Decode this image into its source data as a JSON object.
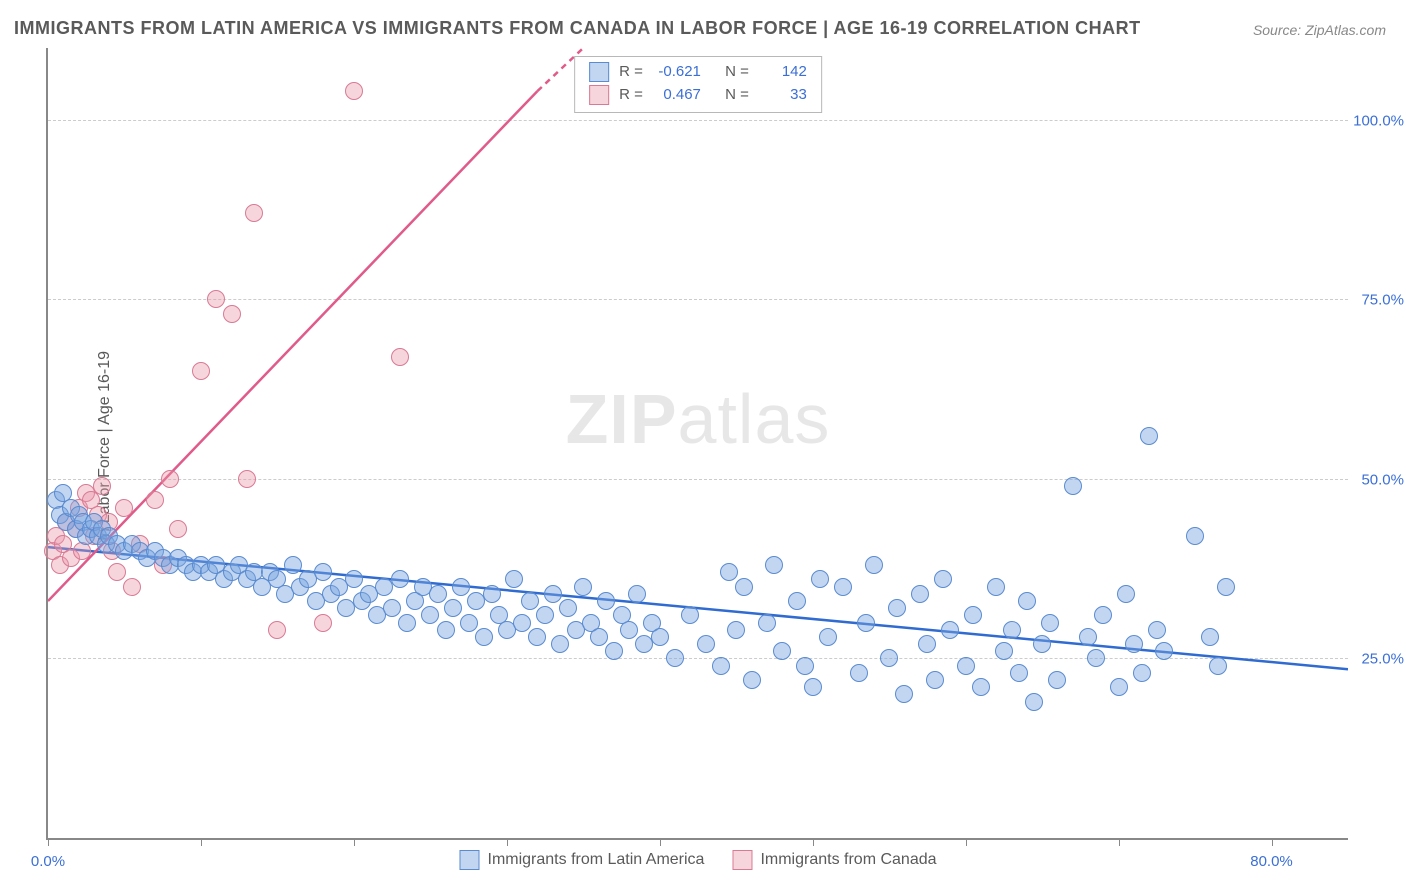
{
  "title": "IMMIGRANTS FROM LATIN AMERICA VS IMMIGRANTS FROM CANADA IN LABOR FORCE | AGE 16-19 CORRELATION CHART",
  "source": "Source: ZipAtlas.com",
  "ylabel": "In Labor Force | Age 16-19",
  "watermark_a": "ZIP",
  "watermark_b": "atlas",
  "chart": {
    "type": "scatter",
    "xlim": [
      0,
      85
    ],
    "ylim": [
      0,
      110
    ],
    "background_color": "#ffffff",
    "grid_color": "#cccccc",
    "axis_color": "#888888",
    "ytick_positions": [
      25,
      50,
      75,
      100
    ],
    "ytick_labels": [
      "25.0%",
      "50.0%",
      "75.0%",
      "100.0%"
    ],
    "xtick_positions": [
      0,
      10,
      20,
      30,
      40,
      50,
      60,
      70,
      80
    ],
    "xtick_labels": {
      "first": "0.0%",
      "last": "80.0%"
    },
    "marker_radius": 8,
    "marker_border_width": 1.5,
    "line_width": 2.5
  },
  "series": {
    "latin": {
      "label": "Immigrants from Latin America",
      "fill": "rgba(120,165,225,0.45)",
      "stroke": "#5a8bd0",
      "line_color": "#2f6bd0",
      "R": "-0.621",
      "N": "142",
      "trend": {
        "x1": 0,
        "y1": 40.5,
        "x2": 85,
        "y2": 23.5
      },
      "points": [
        [
          0.5,
          47
        ],
        [
          0.8,
          45
        ],
        [
          1.0,
          48
        ],
        [
          1.2,
          44
        ],
        [
          1.5,
          46
        ],
        [
          1.8,
          43
        ],
        [
          2.0,
          45
        ],
        [
          2.3,
          44
        ],
        [
          2.5,
          42
        ],
        [
          2.8,
          43
        ],
        [
          3.0,
          44
        ],
        [
          3.3,
          42
        ],
        [
          3.5,
          43
        ],
        [
          3.8,
          41
        ],
        [
          4.0,
          42
        ],
        [
          4.5,
          41
        ],
        [
          5.0,
          40
        ],
        [
          5.5,
          41
        ],
        [
          6.0,
          40
        ],
        [
          6.5,
          39
        ],
        [
          7.0,
          40
        ],
        [
          7.5,
          39
        ],
        [
          8.0,
          38
        ],
        [
          8.5,
          39
        ],
        [
          9.0,
          38
        ],
        [
          9.5,
          37
        ],
        [
          10.0,
          38
        ],
        [
          10.5,
          37
        ],
        [
          11.0,
          38
        ],
        [
          11.5,
          36
        ],
        [
          12.0,
          37
        ],
        [
          12.5,
          38
        ],
        [
          13.0,
          36
        ],
        [
          13.5,
          37
        ],
        [
          14.0,
          35
        ],
        [
          14.5,
          37
        ],
        [
          15.0,
          36
        ],
        [
          15.5,
          34
        ],
        [
          16.0,
          38
        ],
        [
          16.5,
          35
        ],
        [
          17.0,
          36
        ],
        [
          17.5,
          33
        ],
        [
          18.0,
          37
        ],
        [
          18.5,
          34
        ],
        [
          19.0,
          35
        ],
        [
          19.5,
          32
        ],
        [
          20.0,
          36
        ],
        [
          20.5,
          33
        ],
        [
          21.0,
          34
        ],
        [
          21.5,
          31
        ],
        [
          22.0,
          35
        ],
        [
          22.5,
          32
        ],
        [
          23.0,
          36
        ],
        [
          23.5,
          30
        ],
        [
          24.0,
          33
        ],
        [
          24.5,
          35
        ],
        [
          25.0,
          31
        ],
        [
          25.5,
          34
        ],
        [
          26.0,
          29
        ],
        [
          26.5,
          32
        ],
        [
          27.0,
          35
        ],
        [
          27.5,
          30
        ],
        [
          28.0,
          33
        ],
        [
          28.5,
          28
        ],
        [
          29.0,
          34
        ],
        [
          29.5,
          31
        ],
        [
          30.0,
          29
        ],
        [
          30.5,
          36
        ],
        [
          31.0,
          30
        ],
        [
          31.5,
          33
        ],
        [
          32.0,
          28
        ],
        [
          32.5,
          31
        ],
        [
          33.0,
          34
        ],
        [
          33.5,
          27
        ],
        [
          34.0,
          32
        ],
        [
          34.5,
          29
        ],
        [
          35.0,
          35
        ],
        [
          35.5,
          30
        ],
        [
          36.0,
          28
        ],
        [
          36.5,
          33
        ],
        [
          37.0,
          26
        ],
        [
          37.5,
          31
        ],
        [
          38.0,
          29
        ],
        [
          38.5,
          34
        ],
        [
          39.0,
          27
        ],
        [
          39.5,
          30
        ],
        [
          40.0,
          28
        ],
        [
          41.0,
          25
        ],
        [
          42.0,
          31
        ],
        [
          43.0,
          27
        ],
        [
          44.0,
          24
        ],
        [
          44.5,
          37
        ],
        [
          45.0,
          29
        ],
        [
          45.5,
          35
        ],
        [
          46.0,
          22
        ],
        [
          47.0,
          30
        ],
        [
          47.5,
          38
        ],
        [
          48.0,
          26
        ],
        [
          49.0,
          33
        ],
        [
          49.5,
          24
        ],
        [
          50.0,
          21
        ],
        [
          50.5,
          36
        ],
        [
          51.0,
          28
        ],
        [
          52.0,
          35
        ],
        [
          53.0,
          23
        ],
        [
          53.5,
          30
        ],
        [
          54.0,
          38
        ],
        [
          55.0,
          25
        ],
        [
          55.5,
          32
        ],
        [
          56.0,
          20
        ],
        [
          57.0,
          34
        ],
        [
          57.5,
          27
        ],
        [
          58.0,
          22
        ],
        [
          58.5,
          36
        ],
        [
          59.0,
          29
        ],
        [
          60.0,
          24
        ],
        [
          60.5,
          31
        ],
        [
          61.0,
          21
        ],
        [
          62.0,
          35
        ],
        [
          62.5,
          26
        ],
        [
          63.0,
          29
        ],
        [
          63.5,
          23
        ],
        [
          64.0,
          33
        ],
        [
          64.5,
          19
        ],
        [
          65.0,
          27
        ],
        [
          65.5,
          30
        ],
        [
          66.0,
          22
        ],
        [
          67.0,
          49
        ],
        [
          68.0,
          28
        ],
        [
          68.5,
          25
        ],
        [
          69.0,
          31
        ],
        [
          70.0,
          21
        ],
        [
          70.5,
          34
        ],
        [
          71.0,
          27
        ],
        [
          71.5,
          23
        ],
        [
          72.0,
          56
        ],
        [
          72.5,
          29
        ],
        [
          73.0,
          26
        ],
        [
          75.0,
          42
        ],
        [
          76.0,
          28
        ],
        [
          76.5,
          24
        ],
        [
          77.0,
          35
        ]
      ]
    },
    "canada": {
      "label": "Immigrants from Canada",
      "fill": "rgba(235,150,170,0.40)",
      "stroke": "#d87a94",
      "line_color": "#e05a8a",
      "R": "0.467",
      "N": "33",
      "trend_solid": {
        "x1": 0,
        "y1": 33,
        "x2": 32,
        "y2": 104
      },
      "trend_dashed": {
        "x1": 32,
        "y1": 104,
        "x2": 35,
        "y2": 110
      },
      "points": [
        [
          0.3,
          40
        ],
        [
          0.5,
          42
        ],
        [
          0.8,
          38
        ],
        [
          1.0,
          41
        ],
        [
          1.2,
          44
        ],
        [
          1.5,
          39
        ],
        [
          1.8,
          43
        ],
        [
          2.0,
          46
        ],
        [
          2.2,
          40
        ],
        [
          2.5,
          48
        ],
        [
          2.8,
          47
        ],
        [
          3.0,
          42
        ],
        [
          3.3,
          45
        ],
        [
          3.5,
          49
        ],
        [
          4.0,
          44
        ],
        [
          4.2,
          40
        ],
        [
          4.5,
          37
        ],
        [
          5.0,
          46
        ],
        [
          5.5,
          35
        ],
        [
          6.0,
          41
        ],
        [
          7.0,
          47
        ],
        [
          7.5,
          38
        ],
        [
          8.0,
          50
        ],
        [
          8.5,
          43
        ],
        [
          10.0,
          65
        ],
        [
          11.0,
          75
        ],
        [
          12.0,
          73
        ],
        [
          13.0,
          50
        ],
        [
          13.5,
          87
        ],
        [
          15.0,
          29
        ],
        [
          18.0,
          30
        ],
        [
          20.0,
          104
        ],
        [
          23.0,
          67
        ]
      ]
    }
  },
  "legend_labels": {
    "r_prefix": "R =",
    "n_prefix": "N ="
  }
}
